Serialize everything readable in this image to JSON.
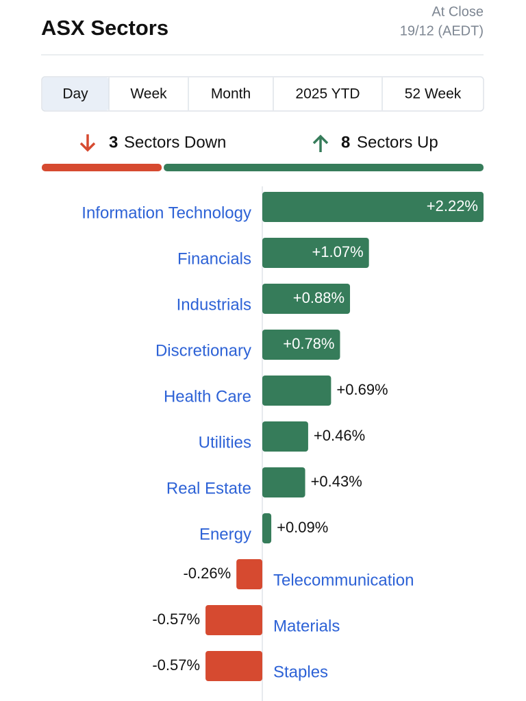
{
  "header": {
    "title": "ASX Sectors",
    "status": "At Close",
    "timestamp": "19/12 (AEDT)"
  },
  "tabs": [
    "Day",
    "Week",
    "Month",
    "2025 YTD",
    "52 Week"
  ],
  "summary": {
    "down_count": 3,
    "down_label": "Sectors Down",
    "up_count": 8,
    "up_label": "Sectors Up"
  },
  "chart_data": {
    "type": "hbar",
    "categories": [
      "Information Technology",
      "Financials",
      "Industrials",
      "Discretionary",
      "Health Care",
      "Utilities",
      "Real Estate",
      "Energy",
      "Telecommunication",
      "Materials",
      "Staples"
    ],
    "values": [
      2.22,
      1.07,
      0.88,
      0.78,
      0.69,
      0.46,
      0.43,
      0.09,
      -0.26,
      -0.57,
      -0.57
    ],
    "value_labels": [
      "+2.22%",
      "+1.07%",
      "+0.88%",
      "+0.78%",
      "+0.69%",
      "+0.46%",
      "+0.43%",
      "+0.09%",
      "-0.26%",
      "-0.57%",
      "-0.57%"
    ],
    "xlim": [
      -2.22,
      2.22
    ],
    "positive_color": "#367c5a",
    "negative_color": "#d64a30"
  }
}
